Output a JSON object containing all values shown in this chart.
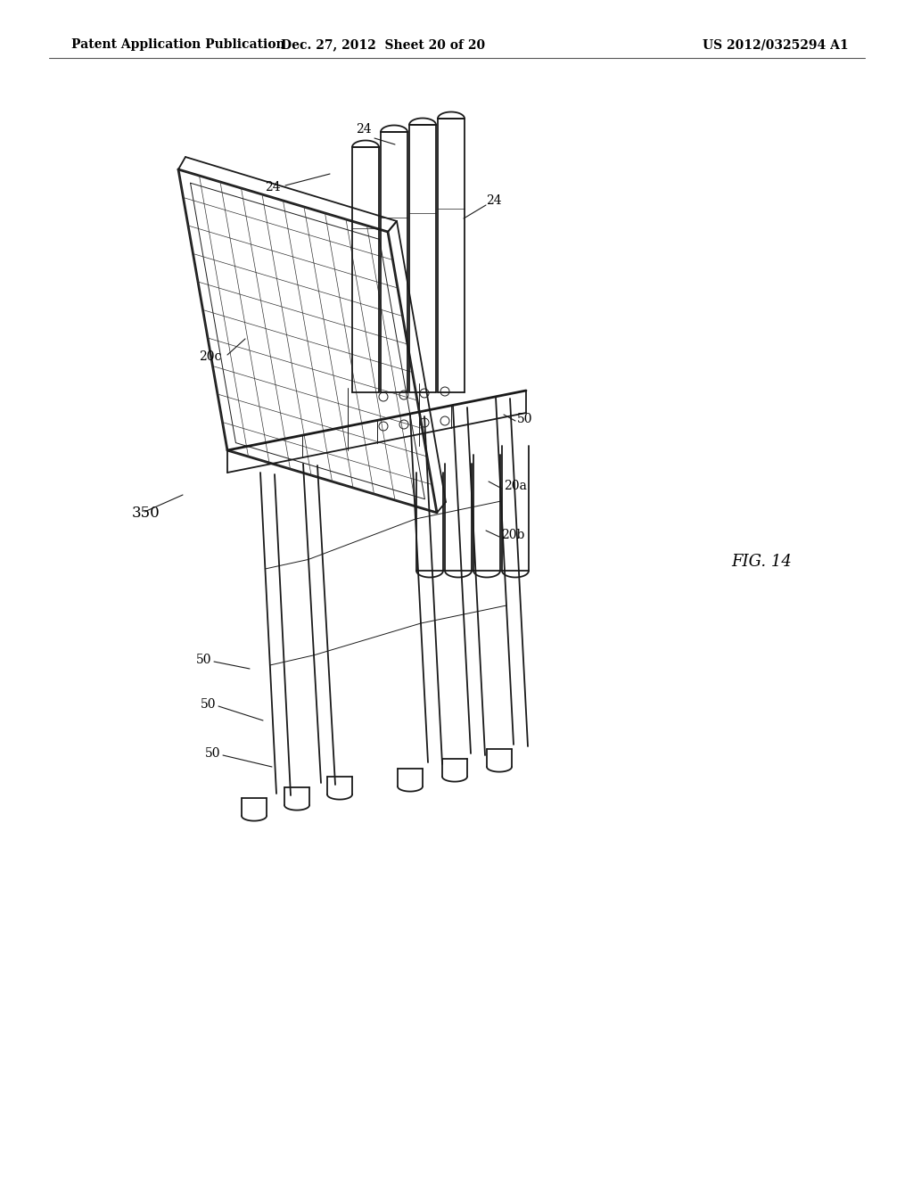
{
  "bg_color": "#ffffff",
  "line_color": "#1a1a1a",
  "header_text_left": "Patent Application Publication",
  "header_text_mid": "Dec. 27, 2012  Sheet 20 of 20",
  "header_text_right": "US 2012/0325294 A1",
  "fig_label": "FIG. 14"
}
